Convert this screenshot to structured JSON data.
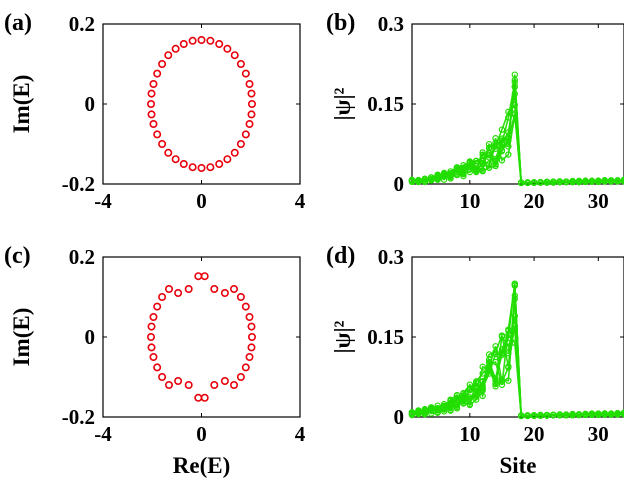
{
  "colors": {
    "eig": "#e8000b",
    "wave": "#22dd00",
    "wave_dark": "#10a800",
    "axis": "#000000"
  },
  "chart_data": [
    {
      "id": "a",
      "type": "scatter",
      "panel_label": "(a)",
      "xlabel": "",
      "ylabel": "Im(E)",
      "xlim": [
        -4,
        4
      ],
      "ylim": [
        -0.2,
        0.2
      ],
      "xticks": [
        "-4",
        "0",
        "4"
      ],
      "yticks": [
        "-0.2",
        "0",
        "0.2"
      ],
      "marker": "open-circle",
      "color": "#e8000b",
      "points": [
        [
          0.0,
          0.16
        ],
        [
          0.36,
          0.158
        ],
        [
          0.72,
          0.15
        ],
        [
          1.05,
          0.138
        ],
        [
          1.35,
          0.122
        ],
        [
          1.6,
          0.1
        ],
        [
          1.8,
          0.076
        ],
        [
          1.95,
          0.05
        ],
        [
          2.03,
          0.026
        ],
        [
          2.05,
          0.0
        ],
        [
          2.03,
          -0.026
        ],
        [
          1.95,
          -0.05
        ],
        [
          1.8,
          -0.076
        ],
        [
          1.6,
          -0.1
        ],
        [
          1.35,
          -0.122
        ],
        [
          1.05,
          -0.138
        ],
        [
          0.72,
          -0.15
        ],
        [
          0.36,
          -0.158
        ],
        [
          0.0,
          -0.16
        ],
        [
          -0.36,
          -0.158
        ],
        [
          -0.72,
          -0.15
        ],
        [
          -1.05,
          -0.138
        ],
        [
          -1.35,
          -0.122
        ],
        [
          -1.6,
          -0.1
        ],
        [
          -1.8,
          -0.076
        ],
        [
          -1.95,
          -0.05
        ],
        [
          -2.03,
          -0.026
        ],
        [
          -2.05,
          0.0
        ],
        [
          -2.03,
          0.026
        ],
        [
          -1.95,
          0.05
        ],
        [
          -1.8,
          0.076
        ],
        [
          -1.6,
          0.1
        ],
        [
          -1.35,
          0.122
        ],
        [
          -1.05,
          0.138
        ],
        [
          -0.72,
          0.15
        ],
        [
          -0.36,
          0.158
        ]
      ]
    },
    {
      "id": "b",
      "type": "line",
      "panel_label": "(b)",
      "xlabel": "",
      "ylabel": "|ψ|²",
      "xlim": [
        1,
        34
      ],
      "ylim": [
        0,
        0.3
      ],
      "xticks": [
        "10",
        "20",
        "30"
      ],
      "yticks": [
        "0",
        "0.15",
        "0.3"
      ],
      "peak_site": 17,
      "peak_value": 0.205,
      "envelope": [
        [
          1,
          0.008
        ],
        [
          3,
          0.012
        ],
        [
          5,
          0.018
        ],
        [
          7,
          0.026
        ],
        [
          9,
          0.037
        ],
        [
          11,
          0.052
        ],
        [
          13,
          0.076
        ],
        [
          15,
          0.11
        ],
        [
          16,
          0.14
        ],
        [
          17,
          0.205
        ],
        [
          18,
          0.003
        ],
        [
          34,
          0.008
        ]
      ]
    },
    {
      "id": "c",
      "type": "scatter",
      "panel_label": "(c)",
      "xlabel": "Re(E)",
      "ylabel": "Im(E)",
      "xlim": [
        -4,
        4
      ],
      "ylim": [
        -0.2,
        0.2
      ],
      "xticks": [
        "-4",
        "0",
        "4"
      ],
      "yticks": [
        "-0.2",
        "0",
        "0.2"
      ],
      "marker": "open-circle",
      "color": "#e8000b",
      "points": [
        [
          -0.13,
          0.152
        ],
        [
          0.13,
          0.152
        ],
        [
          -0.13,
          -0.152
        ],
        [
          0.13,
          -0.152
        ],
        [
          -0.52,
          0.12
        ],
        [
          0.52,
          0.12
        ],
        [
          -0.52,
          -0.12
        ],
        [
          0.52,
          -0.12
        ],
        [
          -0.95,
          0.11
        ],
        [
          0.95,
          0.11
        ],
        [
          -0.95,
          -0.11
        ],
        [
          0.95,
          -0.11
        ],
        [
          -1.32,
          0.12
        ],
        [
          1.32,
          0.12
        ],
        [
          -1.32,
          -0.12
        ],
        [
          1.32,
          -0.12
        ],
        [
          -1.6,
          0.1
        ],
        [
          1.6,
          0.1
        ],
        [
          -1.6,
          -0.1
        ],
        [
          1.6,
          -0.1
        ],
        [
          -1.8,
          0.076
        ],
        [
          1.8,
          0.076
        ],
        [
          -1.8,
          -0.076
        ],
        [
          1.8,
          -0.076
        ],
        [
          -1.95,
          0.05
        ],
        [
          1.95,
          0.05
        ],
        [
          -1.95,
          -0.05
        ],
        [
          1.95,
          -0.05
        ],
        [
          -2.03,
          0.026
        ],
        [
          2.03,
          0.026
        ],
        [
          -2.03,
          -0.026
        ],
        [
          2.03,
          -0.026
        ],
        [
          -2.05,
          0.0
        ],
        [
          2.05,
          0.0
        ]
      ]
    },
    {
      "id": "d",
      "type": "line",
      "panel_label": "(d)",
      "xlabel": "Site",
      "ylabel": "|ψ|²",
      "xlim": [
        1,
        34
      ],
      "ylim": [
        0,
        0.3
      ],
      "xticks": [
        "10",
        "20",
        "30"
      ],
      "yticks": [
        "0",
        "0.15",
        "0.3"
      ],
      "peak_site": 17,
      "peak_value": 0.25,
      "envelope": [
        [
          1,
          0.01
        ],
        [
          3,
          0.015
        ],
        [
          5,
          0.022
        ],
        [
          7,
          0.033
        ],
        [
          9,
          0.05
        ],
        [
          11,
          0.075
        ],
        [
          13,
          0.12
        ],
        [
          15,
          0.16
        ],
        [
          16,
          0.19
        ],
        [
          17,
          0.25
        ],
        [
          18,
          0.003
        ],
        [
          34,
          0.008
        ]
      ]
    }
  ]
}
